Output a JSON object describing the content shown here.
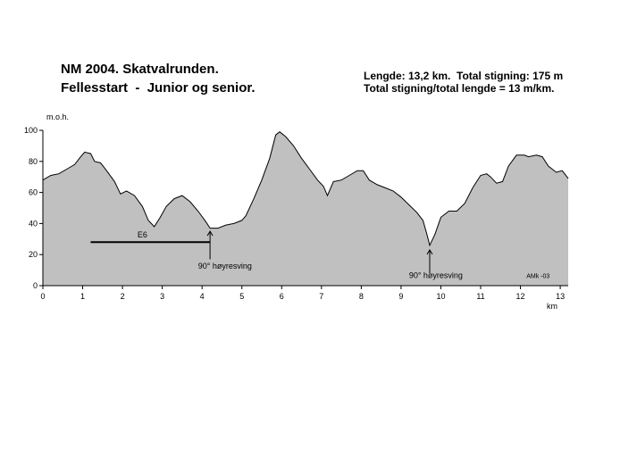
{
  "chart_data": {
    "type": "area",
    "title": "NM 2004. Skatvalrunden.",
    "subtitle": "Fellesstart  -  Junior og senior.",
    "info": [
      "Lengde: 13,2 km.  Total stigning: 175 m",
      "Total stigning/total lengde = 13 m/km."
    ],
    "y_label": "m.o.h.",
    "x_label": "km",
    "annotations": [
      "E6",
      "90° høyresving",
      "90° høyresving",
      "AMk -03"
    ],
    "color": "#c0c0c0",
    "line_color": "#000000",
    "x": [
      0,
      0.2,
      0.4,
      0.6,
      0.8,
      0.95,
      1.05,
      1.2,
      1.3,
      1.45,
      1.6,
      1.8,
      1.95,
      2.1,
      2.3,
      2.5,
      2.65,
      2.8,
      2.95,
      3.1,
      3.3,
      3.5,
      3.7,
      3.9,
      4.1,
      4.2,
      4.4,
      4.6,
      4.8,
      5.0,
      5.1,
      5.3,
      5.5,
      5.7,
      5.85,
      5.95,
      6.1,
      6.3,
      6.5,
      6.7,
      6.9,
      7.05,
      7.15,
      7.3,
      7.5,
      7.7,
      7.9,
      8.05,
      8.2,
      8.4,
      8.6,
      8.8,
      9.0,
      9.2,
      9.4,
      9.55,
      9.65,
      9.72,
      9.85,
      10.0,
      10.2,
      10.4,
      10.6,
      10.8,
      11.0,
      11.15,
      11.25,
      11.4,
      11.55,
      11.7,
      11.9,
      12.1,
      12.2,
      12.4,
      12.55,
      12.7,
      12.9,
      13.05,
      13.2
    ],
    "values": [
      68,
      71,
      72,
      75,
      78,
      83,
      86,
      85,
      80,
      79,
      74,
      67,
      59,
      61,
      58,
      51,
      42,
      38,
      44,
      51,
      56,
      58,
      54,
      48,
      41,
      37,
      37,
      39,
      40,
      42,
      45,
      56,
      68,
      82,
      97,
      99,
      96,
      90,
      82,
      75,
      68,
      64,
      58,
      67,
      68,
      71,
      74,
      74,
      68,
      65,
      63,
      61,
      57,
      52,
      47,
      42,
      33,
      26,
      33,
      44,
      48,
      48,
      53,
      63,
      71,
      72,
      70,
      66,
      67,
      77,
      84,
      84,
      83,
      84,
      83,
      77,
      73,
      74,
      69
    ],
    "xlim": [
      0,
      13.2
    ],
    "ylim": [
      0,
      100
    ],
    "xticks": [
      0,
      1,
      2,
      3,
      4,
      5,
      6,
      7,
      8,
      9,
      10,
      11,
      12,
      13
    ],
    "yticks": [
      0,
      20,
      40,
      60,
      80,
      100
    ]
  }
}
